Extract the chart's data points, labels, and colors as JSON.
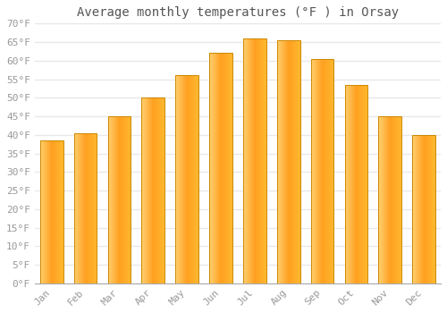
{
  "title": "Average monthly temperatures (°F ) in Orsay",
  "months": [
    "Jan",
    "Feb",
    "Mar",
    "Apr",
    "May",
    "Jun",
    "Jul",
    "Aug",
    "Sep",
    "Oct",
    "Nov",
    "Dec"
  ],
  "values": [
    38.5,
    40.5,
    45.0,
    50.0,
    56.0,
    62.0,
    66.0,
    65.5,
    60.5,
    53.5,
    45.0,
    40.0
  ],
  "ylim": [
    0,
    70
  ],
  "yticks": [
    0,
    5,
    10,
    15,
    20,
    25,
    30,
    35,
    40,
    45,
    50,
    55,
    60,
    65,
    70
  ],
  "ytick_labels": [
    "0°F",
    "5°F",
    "10°F",
    "15°F",
    "20°F",
    "25°F",
    "30°F",
    "35°F",
    "40°F",
    "45°F",
    "50°F",
    "55°F",
    "60°F",
    "65°F",
    "70°F"
  ],
  "background_color": "#ffffff",
  "grid_color": "#e8e8e8",
  "title_fontsize": 10,
  "tick_fontsize": 8,
  "bar_color_left": "#FFD070",
  "bar_color_center": "#FFA020",
  "bar_color_right": "#FFB830",
  "bar_edge_color": "#CC8800",
  "font_family": "monospace",
  "tick_color": "#999999"
}
